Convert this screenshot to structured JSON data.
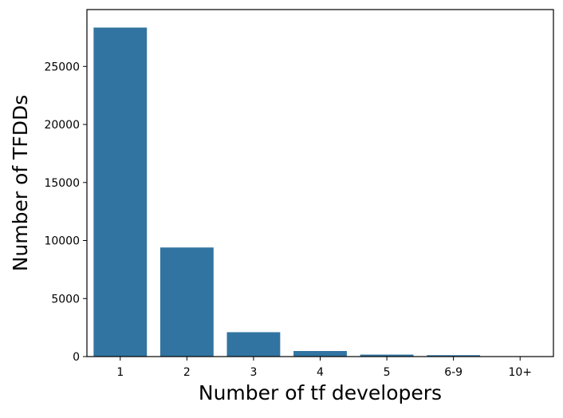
{
  "chart_data": {
    "type": "bar",
    "title": "",
    "xlabel": "Number of tf developers",
    "ylabel": "Number of TFDDs",
    "categories": [
      "1",
      "2",
      "3",
      "4",
      "5",
      "6-9",
      "10+"
    ],
    "values": [
      28350,
      9400,
      2100,
      480,
      170,
      120,
      30
    ],
    "ylim": [
      0,
      29900
    ],
    "yticks": [
      0,
      5000,
      10000,
      15000,
      20000,
      25000
    ],
    "ytick_labels": [
      "0",
      "5000",
      "10000",
      "15000",
      "20000",
      "25000"
    ],
    "grid": false,
    "legend": "none",
    "bar_color": "#3274a1",
    "axis_color": "#000000"
  }
}
